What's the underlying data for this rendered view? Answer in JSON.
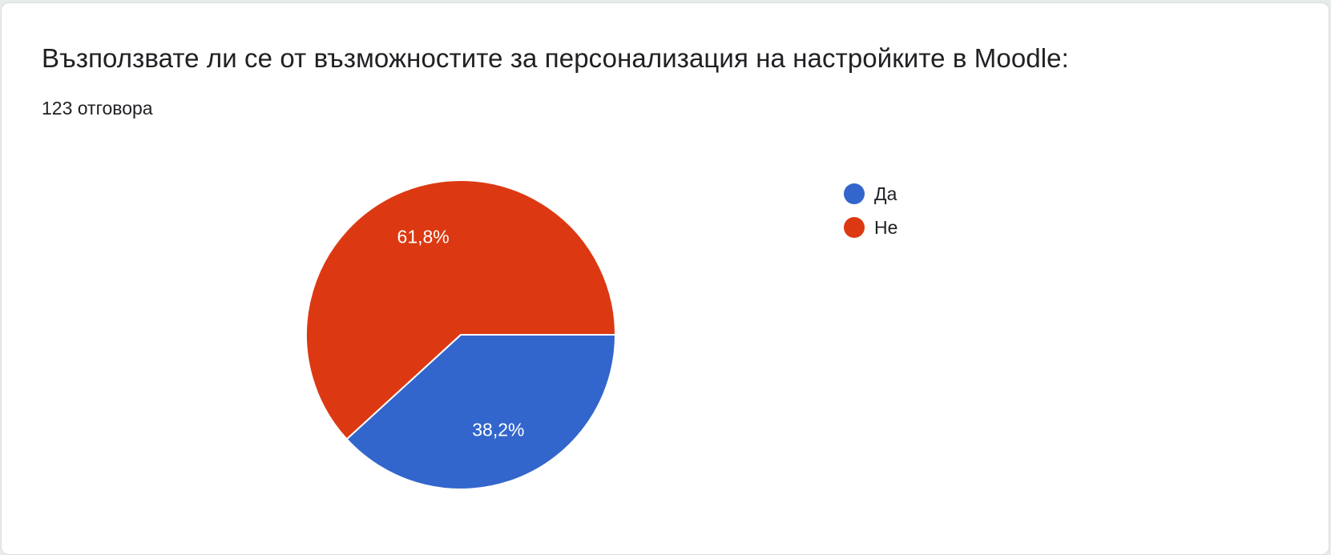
{
  "card": {
    "title": "Възползвате ли се от възможностите за персонализация на настройките в Moodle:",
    "responses": "123 отговора"
  },
  "chart_data": {
    "type": "pie",
    "categories": [
      "Да",
      "Не"
    ],
    "values": [
      38.2,
      61.8
    ],
    "labels": [
      "38,2%",
      "61,8%"
    ],
    "colors": [
      "#3366cc",
      "#dc3912"
    ],
    "legend": "right"
  }
}
